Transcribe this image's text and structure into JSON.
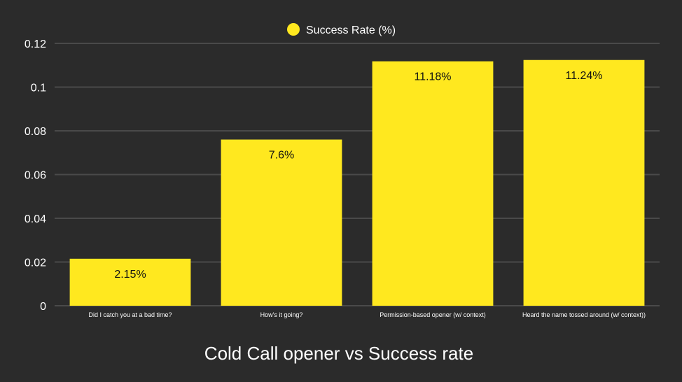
{
  "chart_data": {
    "type": "bar",
    "title": "Cold Call opener vs Success rate",
    "categories": [
      "Did I catch you at a bad time?",
      "How's it going?",
      "Permission-based opener (w/ context)",
      "Heard the name tossed around (w/ context))"
    ],
    "series": [
      {
        "name": "Success Rate (%)",
        "values": [
          0.0215,
          0.076,
          0.1118,
          0.1124
        ],
        "data_labels": [
          "2.15%",
          "7.6%",
          "11.18%",
          "11.24%"
        ],
        "color": "#ffe81f"
      }
    ],
    "ylim": [
      0,
      0.12
    ],
    "yticks": [
      0,
      0.02,
      0.04,
      0.06,
      0.08,
      0.1,
      0.12
    ],
    "ytick_labels": [
      "0",
      "0.02",
      "0.04",
      "0.06",
      "0.08",
      "0.1",
      "0.12"
    ],
    "grid": true,
    "legend_position": "top-center",
    "background_color": "#2b2b2b",
    "grid_color": "#4a4a4a",
    "text_color": "#ffffff"
  }
}
